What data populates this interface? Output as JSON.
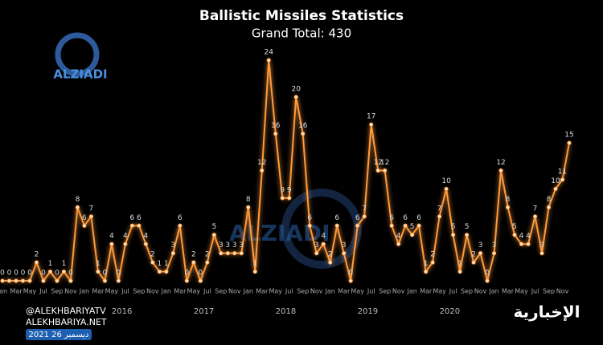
{
  "chart_data": {
    "type": "line",
    "title": "Ballistic Missiles Statistics",
    "subtitle": "Grand Total: 430",
    "categories": [
      "Jan",
      null,
      "Mar",
      null,
      "May",
      null,
      "Jul",
      null,
      "Sep",
      null,
      "Nov",
      null,
      "Jan",
      null,
      "Mar",
      null,
      "May",
      null,
      "Jul",
      null,
      "Sep",
      null,
      "Nov",
      null,
      "Jan",
      null,
      "Mar",
      null,
      "May",
      null,
      "Jul",
      null,
      "Sep",
      null,
      "Nov",
      null,
      "Jan",
      null,
      "Mar",
      null,
      "May",
      null,
      "Jul",
      null,
      "Sep",
      null,
      "Nov",
      null,
      "Jan",
      null,
      "Mar",
      null,
      "May",
      null,
      "Jul",
      null,
      "Sep",
      null,
      "Nov",
      null,
      "Jan",
      null,
      "Mar",
      null,
      "May",
      null,
      "Jul",
      null,
      "Sep",
      null,
      "Nov",
      null,
      "Jan",
      null,
      "Mar",
      null,
      "May",
      null,
      "Jul",
      null,
      "Sep",
      null,
      "Nov",
      null
    ],
    "years": [
      "2016",
      "2017",
      "2018",
      "2019",
      "2020"
    ],
    "values": [
      0,
      0,
      0,
      0,
      0,
      2,
      0,
      1,
      0,
      1,
      0,
      8,
      6,
      7,
      1,
      0,
      4,
      0,
      4,
      6,
      6,
      4,
      2,
      1,
      1,
      3,
      6,
      0,
      2,
      0,
      2,
      5,
      3,
      3,
      3,
      3,
      8,
      1,
      12,
      24,
      16,
      9,
      9,
      20,
      16,
      6,
      3,
      4,
      2,
      6,
      3,
      0,
      6,
      7,
      17,
      12,
      12,
      6,
      4,
      6,
      5,
      6,
      1,
      2,
      7,
      10,
      5,
      1,
      5,
      2,
      3,
      0,
      3,
      12,
      8,
      5,
      4,
      4,
      7,
      3,
      8,
      10,
      11,
      15
    ],
    "color": "#ff9a3c",
    "ylim": [
      0,
      24
    ]
  },
  "branding": {
    "watermark": "ALZIADI",
    "handle": "@ALEKHBARIYATV",
    "site": "ALEKHBARIYA.NET",
    "date": "2021 26 ديسمبر",
    "logo": "الإخبارية"
  }
}
